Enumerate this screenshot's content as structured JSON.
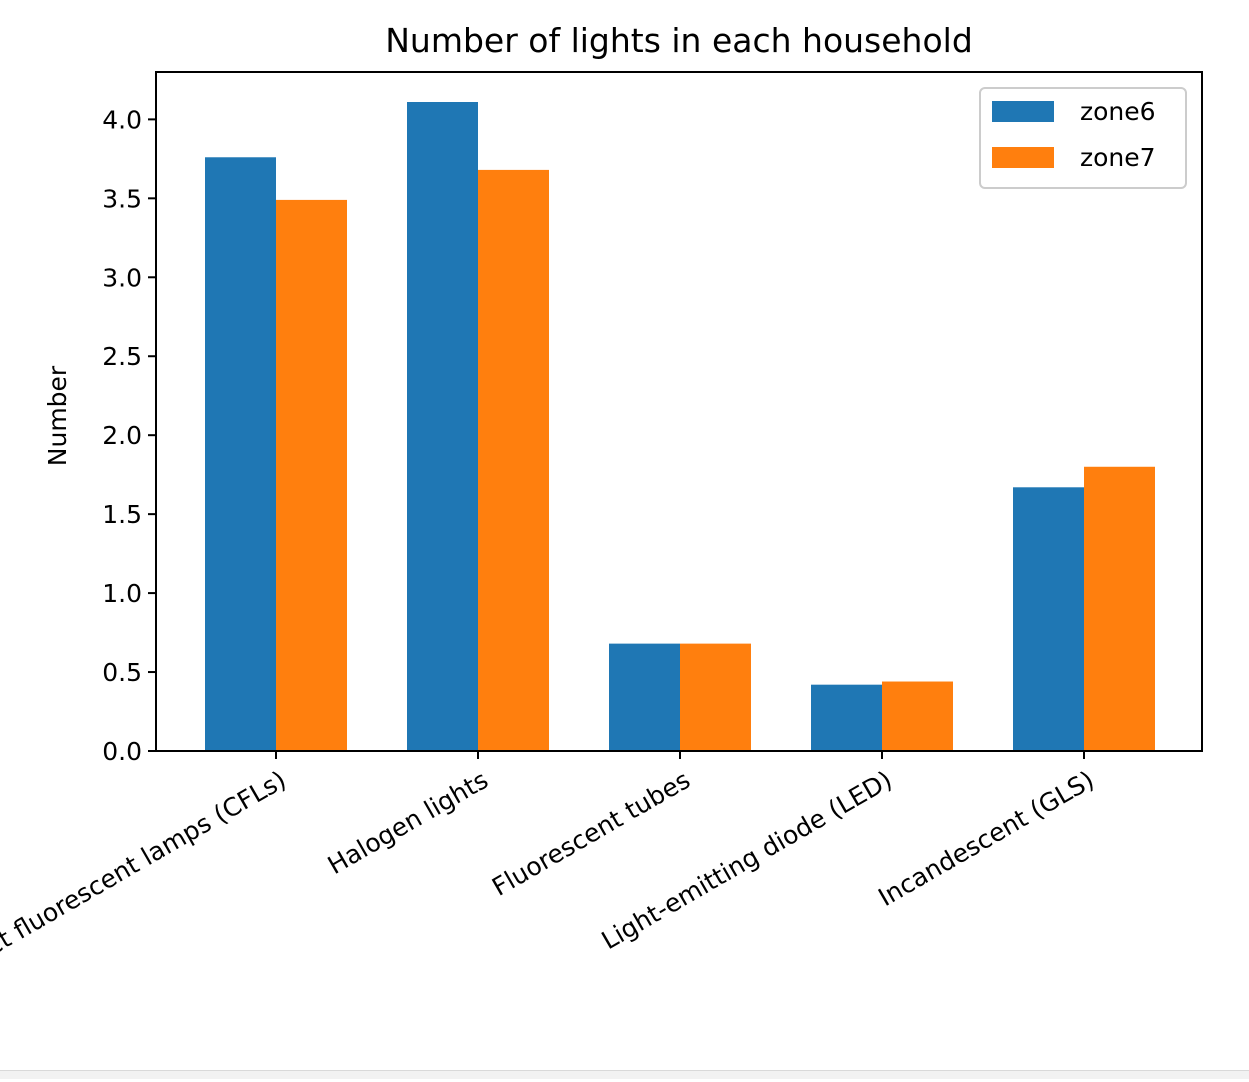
{
  "chart_data": {
    "type": "bar",
    "title": "Number of lights in each household",
    "xlabel": "",
    "ylabel": "Number",
    "categories": [
      "Compact fluorescent lamps (CFLs)",
      "Halogen lights",
      "Fluorescent tubes",
      "Light-emitting diode (LED)",
      "Incandescent (GLS)"
    ],
    "series": [
      {
        "name": "zone6",
        "color": "#1f77b4",
        "values": [
          3.76,
          4.11,
          0.68,
          0.42,
          1.67
        ]
      },
      {
        "name": "zone7",
        "color": "#ff7f0e",
        "values": [
          3.49,
          3.68,
          0.68,
          0.44,
          1.8
        ]
      }
    ],
    "ylim": [
      0,
      4.3
    ],
    "yticks": [
      "0.0",
      "0.5",
      "1.0",
      "1.5",
      "2.0",
      "2.5",
      "3.0",
      "3.5",
      "4.0"
    ],
    "grid": false,
    "legend_position": "top-right"
  }
}
